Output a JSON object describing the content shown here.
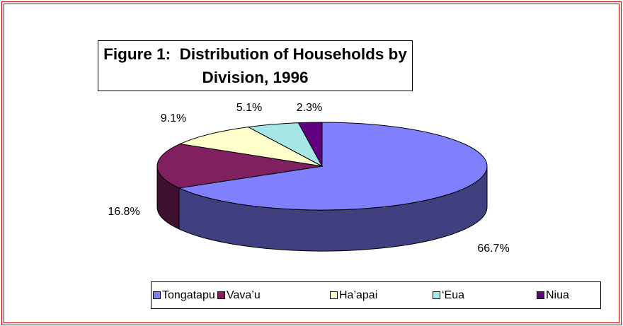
{
  "chart_data": {
    "type": "pie",
    "title": "Figure 1:  Distribution of Households by Division, 1996",
    "categories": [
      "Tongatapu",
      "Vava’u",
      "Ha’apai",
      "‘Eua",
      "Niua"
    ],
    "values": [
      66.7,
      16.8,
      9.1,
      5.1,
      2.3
    ],
    "value_labels": [
      "66.7%",
      "16.8%",
      "9.1%",
      "5.1%",
      "2.3%"
    ],
    "colors": [
      "#8080ff",
      "#802060",
      "#ffffcc",
      "#a6e6e6",
      "#600080"
    ],
    "legend": "bottom"
  }
}
